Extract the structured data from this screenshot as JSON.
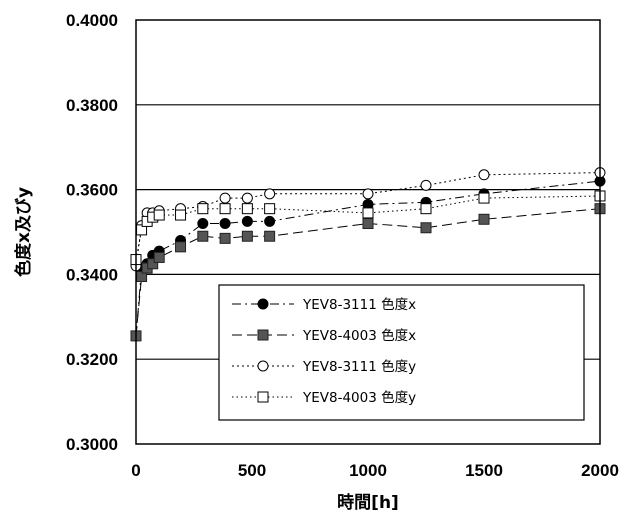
{
  "chart_data": {
    "type": "line",
    "title": "",
    "xlabel": "時間[h]",
    "ylabel": "色度x及びy",
    "xlim": [
      0,
      2000
    ],
    "ylim": [
      0.3,
      0.4
    ],
    "xticks": [
      0,
      500,
      1000,
      1500,
      2000
    ],
    "xtick_labels": [
      "0",
      "500",
      "1000",
      "1500",
      "2000"
    ],
    "yticks": [
      0.3,
      0.32,
      0.34,
      0.36,
      0.38,
      0.4
    ],
    "ytick_labels": [
      "0.3000",
      "0.3200",
      "0.3400",
      "0.3600",
      "0.3800",
      "0.4000"
    ],
    "grid": "horizontal",
    "legend_position": "bottom-right",
    "series": [
      {
        "name": "YEV8-3111 色度x",
        "marker": "filled-circle",
        "line": "dash-dot",
        "x": [
          0,
          24,
          48,
          72,
          100,
          192,
          288,
          384,
          480,
          576,
          1000,
          1250,
          1500,
          2000
        ],
        "y": [
          0.3255,
          0.3415,
          0.3425,
          0.3445,
          0.3455,
          0.348,
          0.352,
          0.352,
          0.3525,
          0.3525,
          0.3565,
          0.357,
          0.359,
          0.362
        ]
      },
      {
        "name": "YEV8-4003 色度x",
        "marker": "filled-square",
        "line": "long-dash",
        "x": [
          0,
          24,
          48,
          72,
          100,
          192,
          288,
          384,
          480,
          576,
          1000,
          1250,
          1500,
          2000
        ],
        "y": [
          0.3255,
          0.3395,
          0.3415,
          0.3425,
          0.344,
          0.3465,
          0.349,
          0.3485,
          0.349,
          0.349,
          0.352,
          0.351,
          0.353,
          0.3555
        ]
      },
      {
        "name": "YEV8-3111 色度y",
        "marker": "open-circle",
        "line": "dotted",
        "x": [
          0,
          24,
          48,
          72,
          100,
          192,
          288,
          384,
          480,
          576,
          1000,
          1250,
          1500,
          2000
        ],
        "y": [
          0.342,
          0.3515,
          0.3545,
          0.3545,
          0.355,
          0.3555,
          0.356,
          0.358,
          0.358,
          0.359,
          0.359,
          0.361,
          0.3635,
          0.364
        ]
      },
      {
        "name": "YEV8-4003 色度y",
        "marker": "open-square",
        "line": "fine-dotted",
        "x": [
          0,
          24,
          48,
          72,
          100,
          192,
          288,
          384,
          480,
          576,
          1000,
          1250,
          1500,
          2000
        ],
        "y": [
          0.3435,
          0.3505,
          0.3525,
          0.3535,
          0.354,
          0.354,
          0.3555,
          0.3555,
          0.3555,
          0.3555,
          0.3545,
          0.3555,
          0.358,
          0.3585
        ]
      }
    ]
  }
}
